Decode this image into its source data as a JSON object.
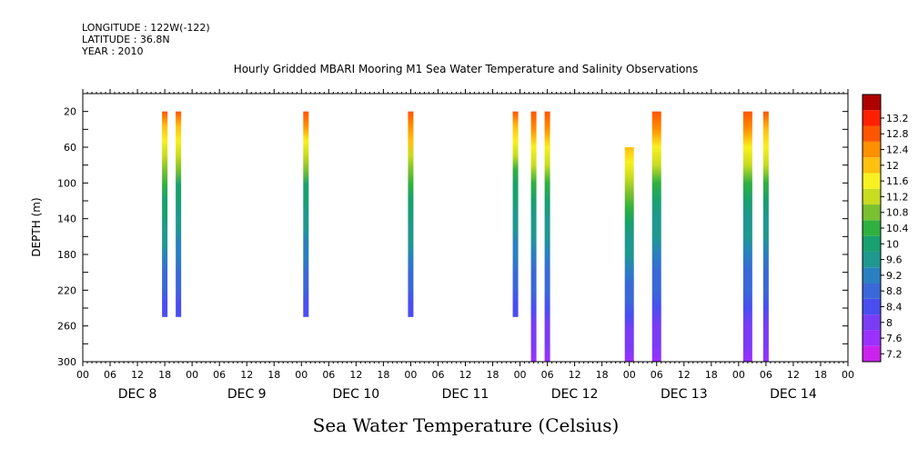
{
  "header": {
    "longitude": "LONGITUDE : 122W(-122)",
    "latitude": "LATITUDE : 36.8N",
    "year": "YEAR : 2010"
  },
  "chart_data": {
    "type": "heatmap",
    "title": "Hourly Gridded MBARI Mooring M1 Sea Water Temperature and Salinity Observations",
    "xlabel": "Sea Water Temperature (Celsius)",
    "ylabel": "DEPTH (m)",
    "x_axis": {
      "unit": "hour",
      "range_hours": [
        0,
        168
      ],
      "hour_ticks": [
        "00",
        "06",
        "12",
        "18",
        "00",
        "06",
        "12",
        "18",
        "00",
        "06",
        "12",
        "18",
        "00",
        "06",
        "12",
        "18",
        "00",
        "06",
        "12",
        "18",
        "00",
        "06",
        "12",
        "18",
        "00",
        "06",
        "12",
        "18",
        "00"
      ],
      "day_labels": [
        "DEC 8",
        "DEC 9",
        "DEC 10",
        "DEC 11",
        "DEC 12",
        "DEC 13",
        "DEC 14"
      ]
    },
    "y_axis": {
      "range": [
        0,
        300
      ],
      "inverted": true,
      "ticks": [
        20,
        60,
        100,
        140,
        180,
        220,
        260,
        300
      ]
    },
    "colorbar": {
      "levels": [
        7.2,
        7.6,
        8,
        8.4,
        8.8,
        9.2,
        9.6,
        10,
        10.4,
        10.8,
        11.2,
        11.6,
        12,
        12.4,
        12.8,
        13.2
      ],
      "colors": [
        "#cc22ee",
        "#9b30ff",
        "#7a3cf5",
        "#4a4ef0",
        "#3a68d8",
        "#2a80c0",
        "#1f9890",
        "#18a070",
        "#30b040",
        "#7ac030",
        "#c8dc20",
        "#f8f020",
        "#ffc010",
        "#ff9000",
        "#ff5500",
        "#ff2000",
        "#b00000"
      ]
    },
    "profiles": [
      {
        "hour": 18,
        "top": 20,
        "bottom": 250,
        "surface": 12.4,
        "mid": 10.2,
        "deep": 8.0
      },
      {
        "hour": 21,
        "top": 20,
        "bottom": 250,
        "surface": 12.4,
        "mid": 10.0,
        "deep": 8.0
      },
      {
        "hour": 49,
        "top": 20,
        "bottom": 250,
        "surface": 12.6,
        "mid": 10.0,
        "deep": 8.0
      },
      {
        "hour": 72,
        "top": 20,
        "bottom": 250,
        "surface": 12.6,
        "mid": 10.2,
        "deep": 8.0
      },
      {
        "hour": 95,
        "top": 20,
        "bottom": 250,
        "surface": 12.4,
        "mid": 9.9,
        "deep": 8.0
      },
      {
        "hour": 99,
        "top": 20,
        "bottom": 300,
        "surface": 12.6,
        "mid": 9.8,
        "deep": 7.4
      },
      {
        "hour": 102,
        "top": 20,
        "bottom": 300,
        "surface": 12.6,
        "mid": 9.8,
        "deep": 7.4
      },
      {
        "hour": 120,
        "top": 60,
        "bottom": 300,
        "surface": 11.6,
        "mid": 9.8,
        "deep": 7.4,
        "wide": true
      },
      {
        "hour": 126,
        "top": 20,
        "bottom": 300,
        "surface": 12.6,
        "mid": 9.8,
        "deep": 7.4,
        "wide": true
      },
      {
        "hour": 146,
        "top": 20,
        "bottom": 300,
        "surface": 12.6,
        "mid": 9.8,
        "deep": 7.4,
        "wide": true
      },
      {
        "hour": 150,
        "top": 20,
        "bottom": 300,
        "surface": 12.4,
        "mid": 9.8,
        "deep": 7.4
      }
    ]
  }
}
